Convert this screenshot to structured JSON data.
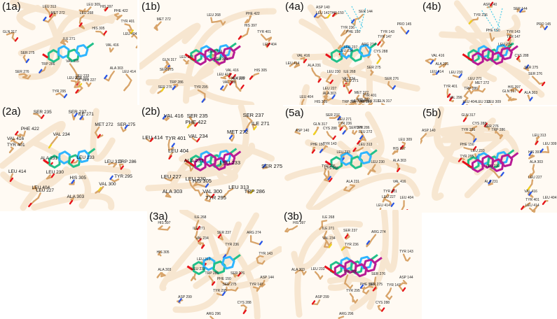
{
  "palette": {
    "residue": "#d8a46a",
    "backbone": "#f1d7b4",
    "ligand_a": "#22c08a",
    "ligand_b": "#2fb5ff",
    "ligand_alt": "#b81b95",
    "oxygen": "#e8121b",
    "nitrogen": "#2a56e6",
    "sulfur": "#f0d11e",
    "hbond": "#2cc3e6"
  },
  "panels": [
    {
      "id": "1a",
      "label": "(1a)",
      "alt_ligand": false,
      "residues": [
        "GLN 317",
        "LEU 313",
        "MET 272",
        "LEU 309",
        "HIS 397",
        "LEU 268",
        "PHE 422",
        "TYR 401",
        "HIS 305",
        "SER 275",
        "VAL 416",
        "LEU 404",
        "ILE 271",
        "TRP 286",
        "VAL 305",
        "ALA 303",
        "LEU 414",
        "LEU 233",
        "LEU 230",
        "ALA 231",
        "LEU 227",
        "SER 276",
        "TYR 295"
      ]
    },
    {
      "id": "1b",
      "label": "(1b)",
      "alt_ligand": true,
      "residues": [
        "LEU 268",
        "PHE 422",
        "MET 272",
        "HIS 397",
        "TYR 401",
        "GLN 317",
        "SER 275",
        "LEU 313",
        "LEU 309",
        "LEU 404",
        "LEU 233",
        "VAL 416",
        "HIS 305",
        "LEU 414",
        "TRP 286",
        "ALA 303",
        "LEU 230",
        "VAL 300",
        "SER 276",
        "TYR 295"
      ]
    },
    {
      "id": "4a",
      "label": "(4a)",
      "alt_ligand": false,
      "residues": [
        "LEU 142",
        "ASP 140",
        "THR 150",
        "SER 144",
        "TYR 236",
        "PHE 150",
        "TYR 143",
        "TYR 147",
        "PRO 145",
        "ARG 274",
        "SER 237",
        "CYS 288",
        "LEU 234",
        "VAL 416",
        "ALA 231",
        "SER 275",
        "LEU 414",
        "LEU 230",
        "ILE 268",
        "SER 276",
        "VAL 234",
        "LEU 271",
        "LEU 227",
        "MET 272",
        "TYR 401",
        "HIS 397",
        "GLN 317",
        "ALA 303",
        "LEU 404",
        "VAL 299",
        "TRP 286",
        "HIS 305",
        "LEU 313",
        "LEU 309"
      ]
    },
    {
      "id": "4b",
      "label": "(4b)",
      "alt_ligand": true,
      "residues": [
        "ASP 140",
        "SER 144",
        "TYR 236",
        "PHE 150",
        "TYR 143",
        "TYR 147",
        "PRO 145",
        "LEU 234",
        "CYS 288",
        "VAL 416",
        "ALA 231",
        "SER 275",
        "LEU 414",
        "LEU 230",
        "SER 276",
        "MET 272",
        "LEU 271",
        "TYR 401",
        "TRP 286",
        "HIS 397",
        "GLN 317",
        "ALA 303",
        "VAL 299",
        "LEU 404",
        "LEU 313",
        "LEU 309"
      ]
    },
    {
      "id": "2a",
      "label": "(2a)",
      "alt_ligand": false,
      "residues": [
        "SER 237",
        "ILE 271",
        "SER 235",
        "MET 272",
        "SER 275",
        "PHE 422",
        "VAL 234",
        "VAL 416",
        "TYR 401",
        "LEU 233",
        "ALA 231",
        "LEU 313",
        "TRP 286",
        "LEU 414",
        "LEU 230",
        "HIS 305",
        "TYR 295",
        "LEU 404",
        "VAL 300",
        "LEU 227",
        "ALA 303"
      ]
    },
    {
      "id": "2b",
      "label": "(2b)",
      "alt_ligand": true,
      "residues": [
        "VAL 416",
        "SER 235",
        "PHE 422",
        "SER 237",
        "ILE 271",
        "TYR 401",
        "VAL 234",
        "LEU 414",
        "MET 272",
        "LEU 404",
        "ALA 231",
        "LEU 233",
        "SER 275",
        "LEU 227",
        "LEU 230",
        "HIS 305",
        "LEU 313",
        "ALA 303",
        "VAL 300",
        "TRP 286",
        "TYR 295"
      ]
    },
    {
      "id": "5a",
      "label": "(5a)",
      "alt_ligand": false,
      "residues": [
        "SER 237",
        "GLN 317",
        "CYS 288",
        "LEU 271",
        "SER 276",
        "TRP 286",
        "TYR 236",
        "LEU 272",
        "ASP 140",
        "PHE 150",
        "LEU 309",
        "TYR 143",
        "LEU 313",
        "LEU 233",
        "HIS 397",
        "ALA 303",
        "TYR 295",
        "LEU 230",
        "CYS 288",
        "ALA 231",
        "VAL 416",
        "TYR 401",
        "LEU 404",
        "LEU 227",
        "LEU 414"
      ]
    },
    {
      "id": "5b",
      "label": "(5b)",
      "alt_ligand": true,
      "residues": [
        "GLN 317",
        "CYS 288",
        "SER 276",
        "TRP 286",
        "LEU 313",
        "TYR 236",
        "LEU 309",
        "ASP 140",
        "PHE 150",
        "LEU 233",
        "HIS 397",
        "TYR 295",
        "LEU 230",
        "ALA 303",
        "ALA 231",
        "LEU 227",
        "VAL 416",
        "TYR 401",
        "LEU 404",
        "LEU 414"
      ]
    },
    {
      "id": "3a",
      "label": "(3a)",
      "alt_ligand": false,
      "residues": [
        "ILE 268",
        "HIS 397",
        "ILE 271",
        "VAL 234",
        "SER 237",
        "ARG 274",
        "TYR 236",
        "HIS 305",
        "LEU 313",
        "TYR 143",
        "LEU 233",
        "ALA 303",
        "TRP 286",
        "SER 276",
        "ASP 144",
        "PHE 150",
        "SER 275",
        "TYR 147",
        "TYR 295",
        "ASP 299",
        "CYS 288",
        "ARG 296"
      ]
    },
    {
      "id": "3b",
      "label": "(3b)",
      "alt_ligand": true,
      "residues": [
        "ILE 268",
        "HIS 397",
        "ILE 271",
        "SER 237",
        "ARG 274",
        "VAL 234",
        "TYR 236",
        "TYR 143",
        "LEU 233",
        "ALA 303",
        "TRP 286",
        "SER 276",
        "ASP 144",
        "SER 275",
        "PHE 150",
        "TYR 147",
        "TYR 295",
        "ASP 299",
        "CYS 288",
        "ARG 296"
      ]
    }
  ]
}
